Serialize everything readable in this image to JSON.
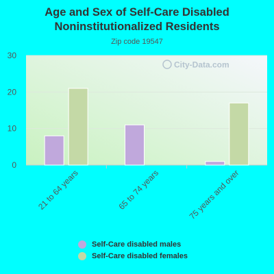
{
  "chart_data": {
    "type": "bar",
    "title": "Age and Sex of Self-Care Disabled Noninstitutionalized Residents",
    "subtitle": "Zip code 19547",
    "categories": [
      "21 to 64 years",
      "65 to 74 years",
      "75 years and over"
    ],
    "series": [
      {
        "name": "Self-Care disabled males",
        "values": [
          8,
          11,
          1
        ],
        "color": "#c0a8dc"
      },
      {
        "name": "Self-Care disabled females",
        "values": [
          21,
          0,
          17
        ],
        "color": "#c4d9a6"
      }
    ],
    "ylim": [
      0,
      30
    ],
    "yticks": [
      0,
      10,
      20,
      30
    ],
    "grid": true,
    "legend_position": "bottom"
  },
  "watermark": "City-Data.com"
}
